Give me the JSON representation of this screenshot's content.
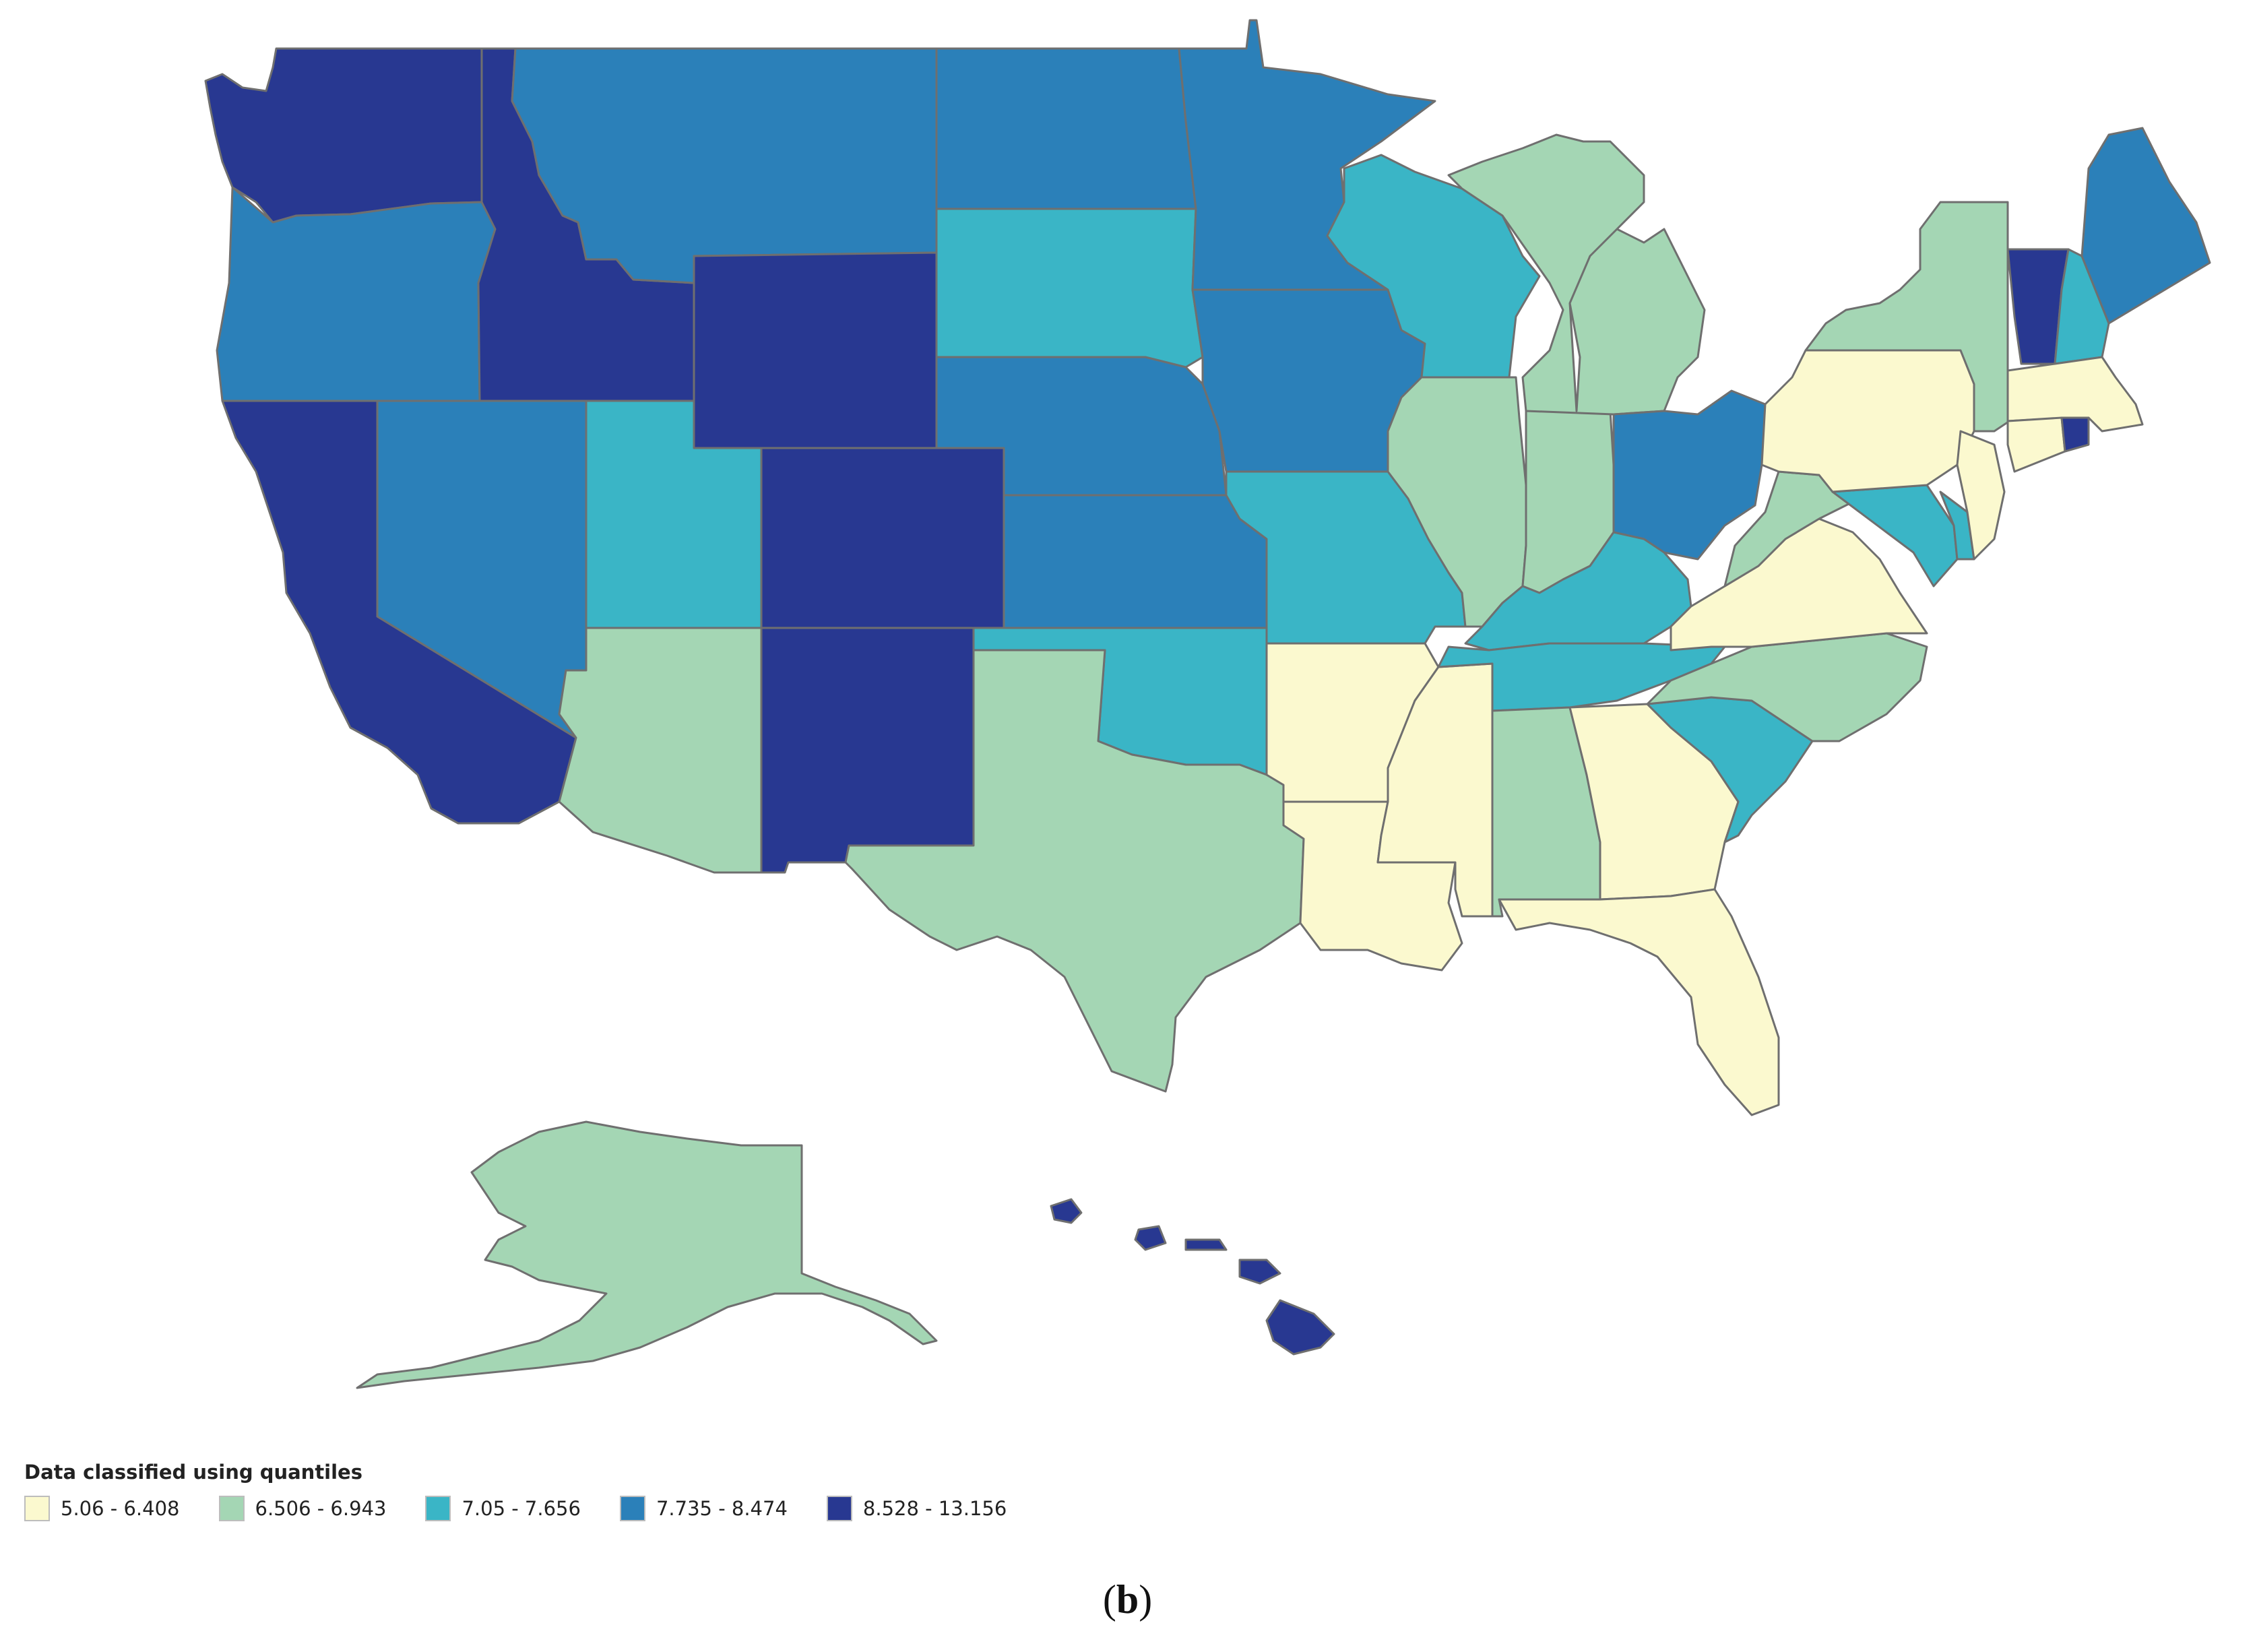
{
  "legend": {
    "title": "Data classified using quantiles",
    "classes": [
      {
        "label": "5.06 - 6.408",
        "color": "#fbf9cf"
      },
      {
        "label": "6.506 - 6.943",
        "color": "#a4d6b4"
      },
      {
        "label": "7.05 - 7.656",
        "color": "#3ab5c6"
      },
      {
        "label": "7.735 - 8.474",
        "color": "#2b80b9"
      },
      {
        "label": "8.528 - 13.156",
        "color": "#283891"
      }
    ]
  },
  "caption": {
    "open": "(",
    "letter": "b",
    "close": ")"
  },
  "states": {
    "WA": 4,
    "OR": 3,
    "CA": 4,
    "ID": 4,
    "NV": 3,
    "MT": 3,
    "WY": 4,
    "UT": 2,
    "AZ": 1,
    "CO": 4,
    "NM": 4,
    "ND": 3,
    "SD": 2,
    "NE": 3,
    "KS": 3,
    "OK": 2,
    "TX": 1,
    "MN": 3,
    "IA": 3,
    "MO": 2,
    "AR": 0,
    "LA": 0,
    "WI": 2,
    "IL": 1,
    "MI": 1,
    "IN": 1,
    "OH": 3,
    "KY": 2,
    "TN": 2,
    "MS": 0,
    "AL": 1,
    "GA": 0,
    "FL": 0,
    "SC": 2,
    "NC": 1,
    "VA": 0,
    "WV": 1,
    "MD": 2,
    "DE": 2,
    "PA": 0,
    "NJ": 0,
    "NY": 1,
    "CT": 0,
    "RI": 4,
    "MA": 0,
    "VT": 4,
    "NH": 2,
    "ME": 3,
    "AK": 1,
    "HI": 4
  }
}
